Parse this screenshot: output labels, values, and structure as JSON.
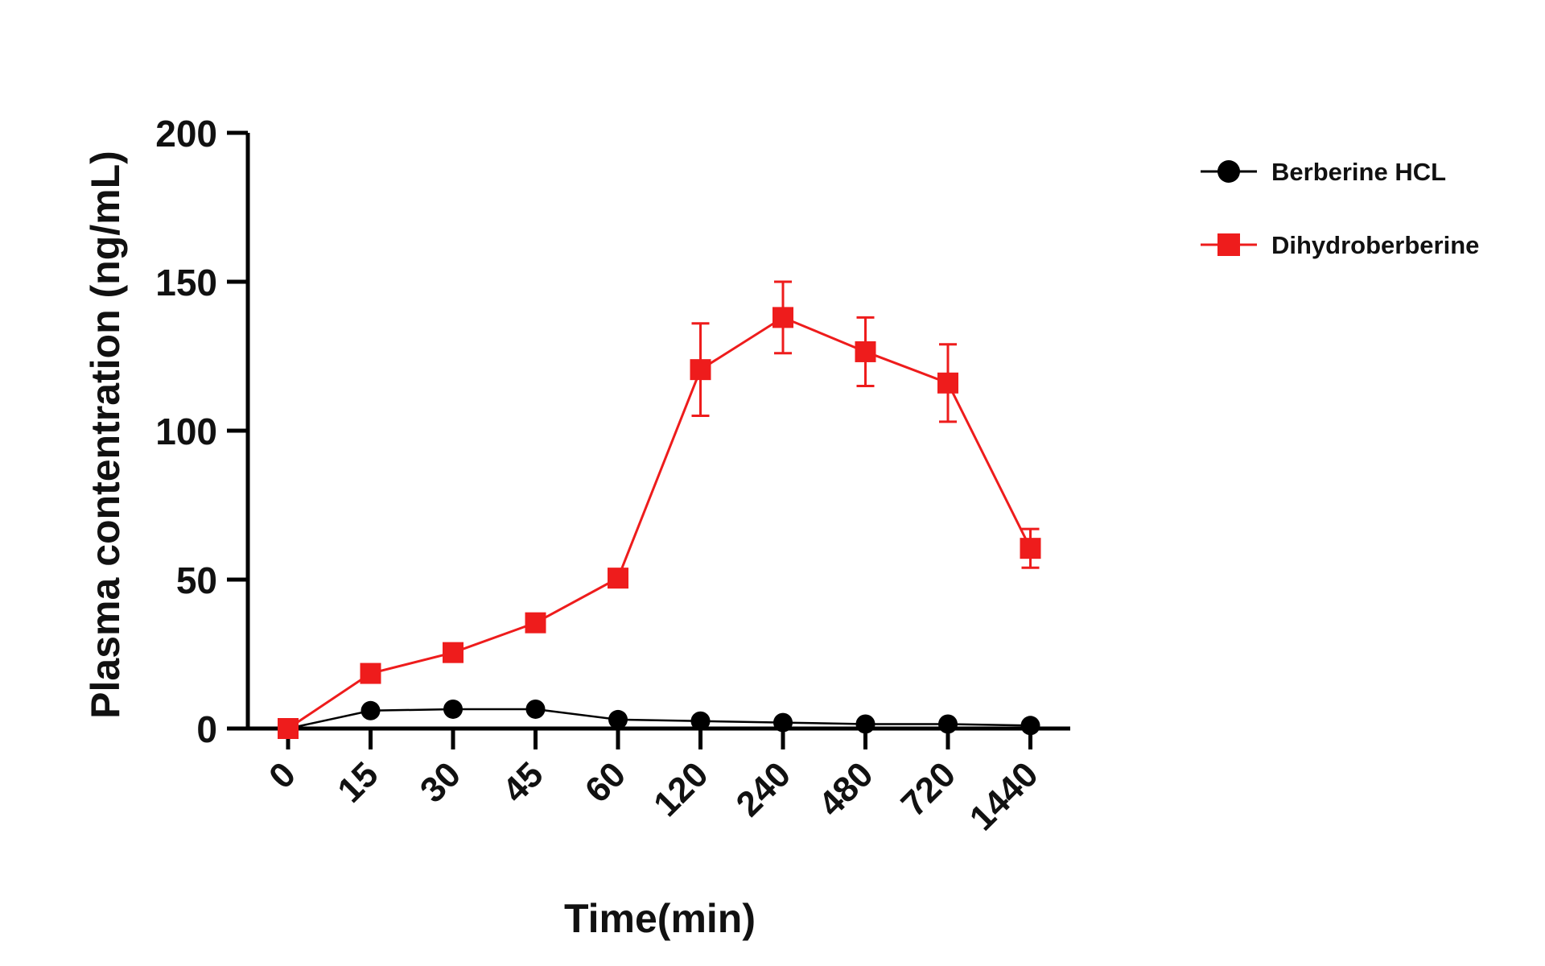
{
  "chart_data": {
    "type": "line",
    "title": "",
    "xlabel": "Time(min)",
    "ylabel": "Plasma contentration (ng/mL)",
    "categories": [
      "0",
      "15",
      "30",
      "45",
      "60",
      "120",
      "240",
      "480",
      "720",
      "1440"
    ],
    "ylim": [
      0,
      200
    ],
    "yticks": [
      "0",
      "50",
      "100",
      "150",
      "200"
    ],
    "grid": false,
    "legend": "top-right",
    "series": [
      {
        "name": "Berberine HCL",
        "marker": "circle",
        "color": "#000000",
        "values": [
          0,
          6,
          6.5,
          6.5,
          3,
          2.5,
          2,
          1.5,
          1.5,
          1
        ],
        "error": [
          0,
          0,
          0,
          0,
          0,
          0,
          0,
          0,
          0,
          0
        ]
      },
      {
        "name": "Dihydroberberine",
        "marker": "square",
        "color": "#ee1c1c",
        "values": [
          0,
          18.5,
          25.5,
          35.5,
          50.5,
          120.5,
          138,
          126.5,
          116,
          60.5
        ],
        "error": [
          0,
          0,
          0,
          0,
          0,
          15.5,
          12,
          11.5,
          13,
          6.5
        ]
      }
    ]
  }
}
